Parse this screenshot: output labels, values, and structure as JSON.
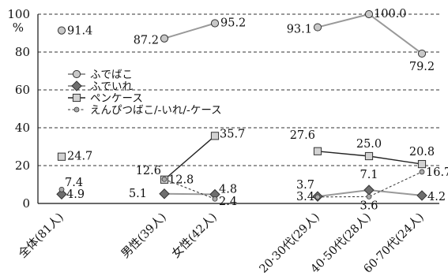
{
  "chart_data": {
    "type": "line",
    "categories": [
      "全体(81人)",
      "男性(39人)",
      "女性(42人)",
      "20·30代(29人)",
      "40·50代(28人)",
      "60·70代(24人)"
    ],
    "groups": [
      [
        0
      ],
      [
        1,
        2
      ],
      [
        3,
        4,
        5
      ]
    ],
    "y_unit": "%",
    "ylim": [
      0,
      100
    ],
    "yticks": [
      0,
      20,
      40,
      60,
      80,
      100
    ],
    "grid": "dashed horizontal",
    "legend_position": "left, middle",
    "series": [
      {
        "name": "ふでばこ",
        "marker": "circle",
        "line": "solid-gray",
        "color": "#9a9a9a",
        "values": [
          91.4,
          87.2,
          95.2,
          93.1,
          100.0,
          79.2
        ],
        "labels": [
          "91.4",
          "87.2",
          "95.2",
          "93.1",
          "100.0",
          "79.2"
        ]
      },
      {
        "name": "ふでいれ",
        "marker": "diamond",
        "line": "solid-gray",
        "color": "#777777",
        "values": [
          4.9,
          5.1,
          4.8,
          3.7,
          7.1,
          4.2
        ],
        "labels": [
          "4.9",
          "5.1",
          "4.8",
          "3.7",
          "7.1",
          "4.2"
        ]
      },
      {
        "name": "ペンケース",
        "marker": "square",
        "line": "solid-black",
        "color": "#222222",
        "values": [
          24.7,
          12.6,
          35.7,
          27.6,
          25.0,
          20.8
        ],
        "labels": [
          "24.7",
          "12.6",
          "35.7",
          "27.6",
          "25.0",
          "20.8"
        ]
      },
      {
        "name": "えんぴつばこ/-いれ/-ケース",
        "marker": "small-circle",
        "line": "dotted",
        "color": "#555555",
        "values": [
          7.4,
          12.8,
          2.4,
          3.4,
          3.6,
          16.7
        ],
        "labels": [
          "7.4",
          "12.8",
          "2.4",
          "3.4",
          "3.6",
          "16.7"
        ]
      }
    ]
  }
}
